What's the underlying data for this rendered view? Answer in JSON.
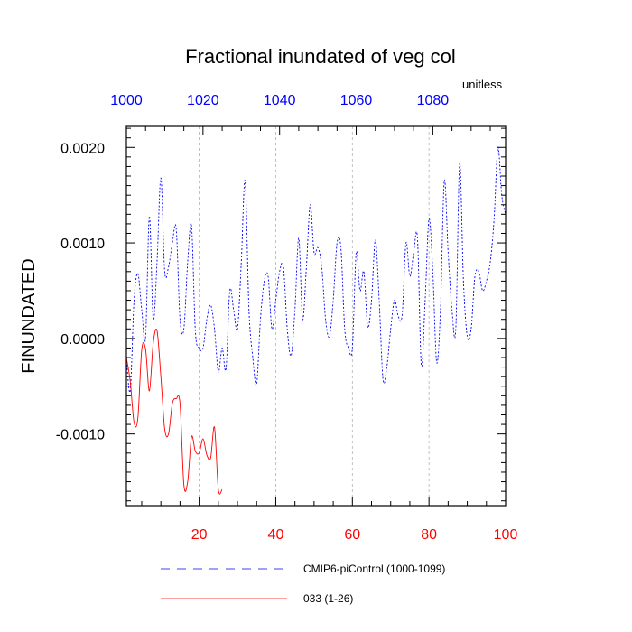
{
  "chart_data": {
    "type": "line",
    "title": "Fractional inundated of veg col",
    "units_label": "unitless",
    "ylabel": "FINUNDATED",
    "xlim": [
      1,
      100
    ],
    "ylim": [
      -0.00175,
      0.00222
    ],
    "x_bottom_ticks": [
      20,
      40,
      60,
      80,
      100
    ],
    "x_bottom_tick_labels": [
      "20",
      "40",
      "60",
      "80",
      "100"
    ],
    "x_top_ticks": [
      1,
      21,
      41,
      61,
      81
    ],
    "x_top_tick_labels": [
      "1000",
      "1020",
      "1040",
      "1060",
      "1080"
    ],
    "y_ticks": [
      -0.001,
      0.0,
      0.001,
      0.002
    ],
    "y_tick_labels": [
      "-0.0010",
      "0.0000",
      "0.0010",
      "0.0020"
    ],
    "grid": "vertical dashed at bottom ticks",
    "legend_position": "bottom",
    "series": [
      {
        "name": "CMIP6-piControl (1000-1099)",
        "color": "#0000ff",
        "style": "dashed",
        "x": [
          1,
          2,
          3,
          4,
          5,
          6,
          7,
          8,
          9,
          10,
          11,
          12,
          13,
          14,
          15,
          16,
          17,
          18,
          19,
          20,
          21,
          22,
          23,
          24,
          25,
          26,
          27,
          28,
          29,
          30,
          31,
          32,
          33,
          34,
          35,
          36,
          37,
          38,
          39,
          40,
          41,
          42,
          43,
          44,
          45,
          46,
          47,
          48,
          49,
          50,
          51,
          52,
          53,
          54,
          55,
          56,
          57,
          58,
          59,
          60,
          61,
          62,
          63,
          64,
          65,
          66,
          67,
          68,
          69,
          70,
          71,
          72,
          73,
          74,
          75,
          76,
          77,
          78,
          79,
          80,
          81,
          82,
          83,
          84,
          85,
          86,
          87,
          88,
          89,
          90,
          91,
          92,
          93,
          94,
          95,
          96,
          97,
          98,
          99,
          100
        ],
        "values": [
          -0.0002,
          -0.00055,
          0.0004,
          0.00068,
          0.0003,
          1e-05,
          0.00128,
          0.0002,
          0.0008,
          0.00168,
          0.0007,
          0.00075,
          0.001,
          0.00115,
          0.0002,
          0.0001,
          0.0008,
          0.00118,
          8e-05,
          -0.0001,
          -0.0001,
          0.0002,
          0.00035,
          0.0001,
          -0.00035,
          -0.0001,
          -0.00032,
          0.0005,
          0.0003,
          0.0001,
          0.0008,
          0.00165,
          0.0003,
          -0.0002,
          -0.00048,
          0.0002,
          0.0006,
          0.00065,
          0.0001,
          0.0004,
          0.0007,
          0.00075,
          0.0001,
          -0.00018,
          0.0003,
          0.00105,
          0.0002,
          0.00075,
          0.0014,
          0.0009,
          0.00095,
          0.00075,
          0.0002,
          2e-05,
          0.0004,
          0.001,
          0.00095,
          0.0001,
          -0.0001,
          -0.0001,
          0.0009,
          0.0005,
          0.0007,
          0.00012,
          0.0004,
          0.00103,
          0.0004,
          -0.00043,
          -0.0003,
          0.0001,
          0.0004,
          0.00023,
          0.00025,
          0.001,
          0.00065,
          0.0009,
          0.00105,
          -0.00028,
          0.0004,
          0.00125,
          0.0007,
          -0.00025,
          0.0003,
          0.00165,
          0.0009,
          0.0003,
          0.0001,
          0.00183,
          0.0006,
          2e-05,
          0.0001,
          0.00065,
          0.0007,
          0.0005,
          0.0006,
          0.0008,
          0.00125,
          0.002,
          0.0015,
          0.0013
        ]
      },
      {
        "name": "033 (1-26)",
        "color": "#ff0000",
        "style": "solid",
        "x": [
          1,
          2,
          3,
          4,
          5,
          6,
          7,
          8,
          9,
          10,
          11,
          12,
          13,
          14,
          15,
          16,
          17,
          18,
          19,
          20,
          21,
          22,
          23,
          24,
          25,
          26
        ],
        "values": [
          -0.0002,
          -0.00045,
          -0.00088,
          -0.00083,
          -0.00012,
          -0.00011,
          -0.00055,
          -5e-05,
          8e-05,
          -0.0004,
          -0.00095,
          -0.001,
          -0.00068,
          -0.00063,
          -0.00068,
          -0.00153,
          -0.0015,
          -0.00103,
          -0.00118,
          -0.0012,
          -0.00105,
          -0.00122,
          -0.00125,
          -0.00093,
          -0.00158,
          -0.00158
        ]
      }
    ]
  }
}
